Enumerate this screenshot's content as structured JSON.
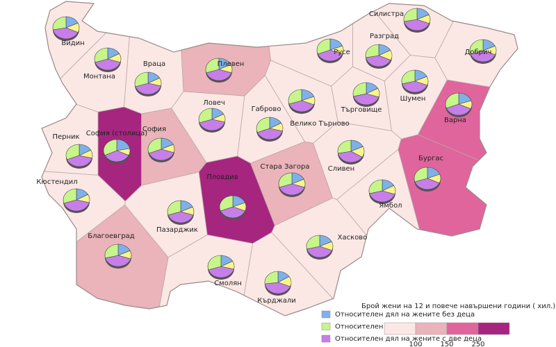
{
  "map": {
    "regions": [
      {
        "name": "Видин",
        "color": "#fbe8e5",
        "values": [
          18,
          28,
          40,
          14
        ]
      },
      {
        "name": "Монтана",
        "color": "#fbe8e5",
        "values": [
          17,
          30,
          40,
          13
        ]
      },
      {
        "name": "Враца",
        "color": "#fbe8e5",
        "values": [
          17,
          30,
          41,
          12
        ]
      },
      {
        "name": "Плевен",
        "color": "#ebb3ba",
        "values": [
          18,
          30,
          40,
          12
        ]
      },
      {
        "name": "Русе",
        "color": "#fbe8e5",
        "values": [
          19,
          31,
          38,
          12
        ]
      },
      {
        "name": "Разград",
        "color": "#fbe8e5",
        "values": [
          17,
          28,
          40,
          15
        ]
      },
      {
        "name": "Силистра",
        "color": "#fbe8e5",
        "values": [
          18,
          28,
          41,
          13
        ]
      },
      {
        "name": "Добрич",
        "color": "#fbe8e5",
        "values": [
          18,
          30,
          39,
          13
        ]
      },
      {
        "name": "Шумен",
        "color": "#fbe8e5",
        "values": [
          18,
          29,
          40,
          13
        ]
      },
      {
        "name": "Търговище",
        "color": "#fbe8e5",
        "values": [
          17,
          29,
          41,
          13
        ]
      },
      {
        "name": "Варна",
        "color": "#e0659c",
        "values": [
          20,
          31,
          37,
          12
        ]
      },
      {
        "name": "Велико Търново",
        "color": "#fbe8e5",
        "values": [
          19,
          30,
          39,
          12
        ]
      },
      {
        "name": "Габрово",
        "color": "#fbe8e5",
        "values": [
          17,
          31,
          40,
          12
        ]
      },
      {
        "name": "Ловеч",
        "color": "#fbe8e5",
        "values": [
          17,
          30,
          41,
          12
        ]
      },
      {
        "name": "София (столица)",
        "color": "#a6257f",
        "values": [
          22,
          32,
          36,
          10
        ]
      },
      {
        "name": "София",
        "color": "#ebb3ba",
        "values": [
          18,
          31,
          39,
          12
        ]
      },
      {
        "name": "Перник",
        "color": "#fbe8e5",
        "values": [
          17,
          31,
          40,
          12
        ]
      },
      {
        "name": "Кюстендил",
        "color": "#fbe8e5",
        "values": [
          17,
          30,
          41,
          12
        ]
      },
      {
        "name": "Благоевград",
        "color": "#ebb3ba",
        "values": [
          18,
          29,
          41,
          12
        ]
      },
      {
        "name": "Пазарджик",
        "color": "#fbe8e5",
        "values": [
          18,
          30,
          40,
          12
        ]
      },
      {
        "name": "Пловдив",
        "color": "#a6257f",
        "values": [
          19,
          31,
          38,
          12
        ]
      },
      {
        "name": "Стара Загора",
        "color": "#ebb3ba",
        "values": [
          18,
          30,
          40,
          12
        ]
      },
      {
        "name": "Сливен",
        "color": "#fbe8e5",
        "values": [
          18,
          28,
          38,
          16
        ]
      },
      {
        "name": "Ямбол",
        "color": "#fbe8e5",
        "values": [
          17,
          29,
          41,
          13
        ]
      },
      {
        "name": "Бургас",
        "color": "#e0659c",
        "values": [
          19,
          30,
          38,
          13
        ]
      },
      {
        "name": "Хасково",
        "color": "#fbe8e5",
        "values": [
          18,
          29,
          40,
          13
        ]
      },
      {
        "name": "Смолян",
        "color": "#fbe8e5",
        "values": [
          17,
          30,
          41,
          12
        ]
      },
      {
        "name": "Кърджали",
        "color": "#fbe8e5",
        "values": [
          16,
          27,
          42,
          15
        ]
      }
    ],
    "pie_colors": [
      "#7fb0ea",
      "#c6f58a",
      "#c77ee8",
      "#f8f58a"
    ],
    "legend": [
      {
        "name": "Относителен дял на жените без деца",
        "color": "#7fb0ea"
      },
      {
        "name": "Относителен дял на жените с едно дете",
        "color": "#c6f58a"
      },
      {
        "name": "Относителен дял на жените с две деца",
        "color": "#c77ee8"
      }
    ],
    "scale": {
      "title": "Брой жени на 12 и повече навършени години ( хил.)",
      "colors": [
        "#fbe8e5",
        "#ebb3ba",
        "#e0659c",
        "#a6257f"
      ],
      "ticks": [
        100,
        150,
        250
      ]
    }
  }
}
